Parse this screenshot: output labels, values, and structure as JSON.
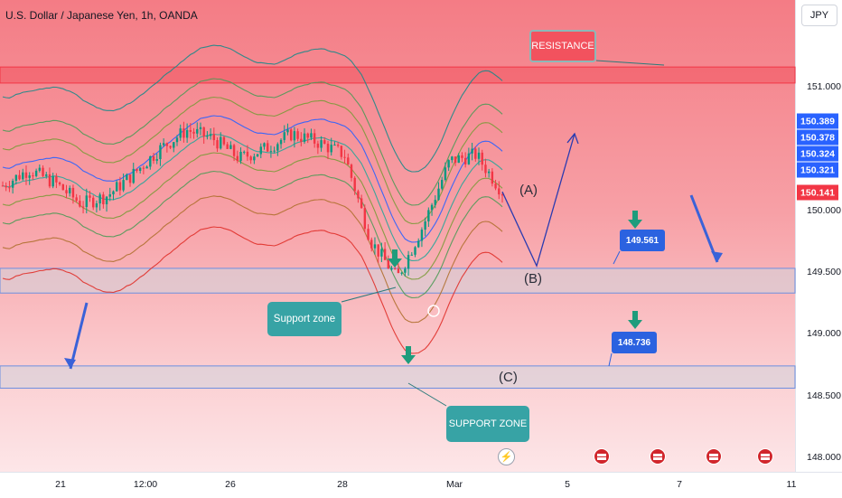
{
  "header": {
    "title": "U.S. Dollar / Japanese Yen, 1h, OANDA",
    "currency_button": "JPY"
  },
  "chart_data": {
    "type": "line",
    "symbol": "U.S. Dollar / Japanese Yen",
    "timeframe": "1h",
    "source": "OANDA",
    "currency": "JPY",
    "ylim": [
      147.98,
      151.56
    ],
    "y_ticks": [
      "151.000",
      "150.000",
      "149.500",
      "149.000",
      "148.500",
      "148.000"
    ],
    "x_ticks": [
      "21",
      "12:00",
      "26",
      "28",
      "Mar",
      "5",
      "7",
      "11"
    ],
    "price_labels": [
      {
        "value": "150.389",
        "color": "#2962ff"
      },
      {
        "value": "150.378",
        "color": "#2962ff"
      },
      {
        "value": "150.324",
        "color": "#2962ff"
      },
      {
        "value": "150.321",
        "color": "#2962ff"
      },
      {
        "value": "150.141",
        "color": "#f23645"
      }
    ],
    "zones": [
      {
        "name": "resistance",
        "from": 151.03,
        "to": 151.16,
        "color": "#f23645"
      },
      {
        "name": "support",
        "from": 149.33,
        "to": 149.53,
        "color": "#d1d4dc"
      },
      {
        "name": "support",
        "from": 148.56,
        "to": 148.74,
        "color": "#d1d4dc"
      }
    ],
    "series": [
      {
        "values": [
          150.2,
          150.33,
          150.22,
          150.05,
          150.12,
          150.3,
          150.5,
          150.65,
          150.58,
          150.42,
          150.5,
          150.62,
          150.55,
          150.45,
          149.75,
          149.45,
          149.88,
          150.4,
          150.45,
          150.15
        ]
      }
    ],
    "projection": [
      150.15,
      149.55,
      150.62
    ],
    "annotations": {
      "resistance": "RESISTANCE",
      "support_zone": "Support zone",
      "support_zone_caps": "SUPPORT ZONE",
      "target_1": "149.561",
      "target_2": "148.736",
      "wave_a": "(A)",
      "wave_b": "(B)",
      "wave_c": "(C)"
    }
  }
}
